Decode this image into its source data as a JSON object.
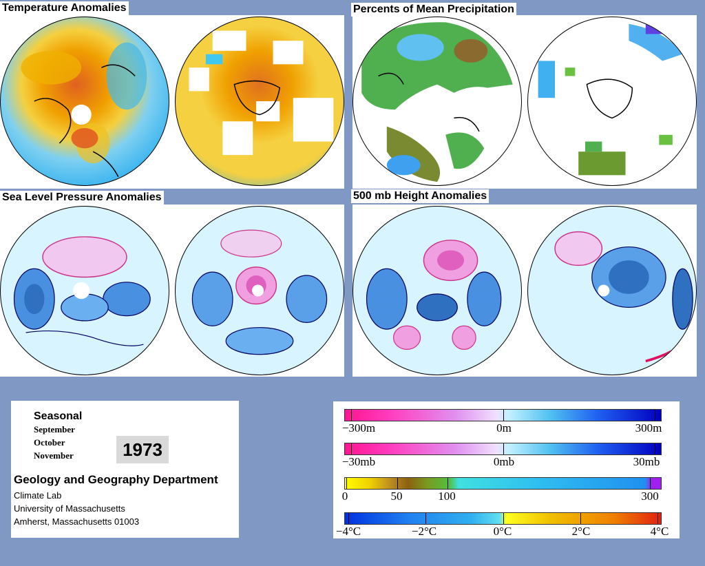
{
  "panels": {
    "temperature": {
      "title": "Temperature Anomalies"
    },
    "precipitation": {
      "title": "Percents of Mean Precipitation"
    },
    "pressure": {
      "title": "Sea Level Pressure Anomalies"
    },
    "height": {
      "title": "500 mb Height Anomalies"
    }
  },
  "info": {
    "season": "Seasonal",
    "months": [
      "September",
      "October",
      "November"
    ],
    "year": "1973",
    "department": "Geology and Geography Department",
    "address": [
      "Climate Lab",
      "University of Massachusetts",
      "Amherst, Massachusetts 01003"
    ]
  },
  "legend": {
    "height": {
      "labels": [
        "−300m",
        "0m",
        "300m"
      ]
    },
    "pressure": {
      "labels": [
        "−30mb",
        "0mb",
        "30mb"
      ]
    },
    "precip": {
      "labels": [
        "0",
        "50",
        "100",
        "300"
      ]
    },
    "temp": {
      "labels": [
        "−4°C",
        "−2°C",
        "0°C",
        "2°C",
        "4°C"
      ]
    }
  },
  "colors": {
    "background": "#7f99c4",
    "warm": "#f0a000",
    "cold": "#20a0ff",
    "neutral": "#c8f0ff",
    "negative": "#ff1493",
    "positive": "#0000cc",
    "dry": "#8b5a1a",
    "wet": "#50a050"
  }
}
